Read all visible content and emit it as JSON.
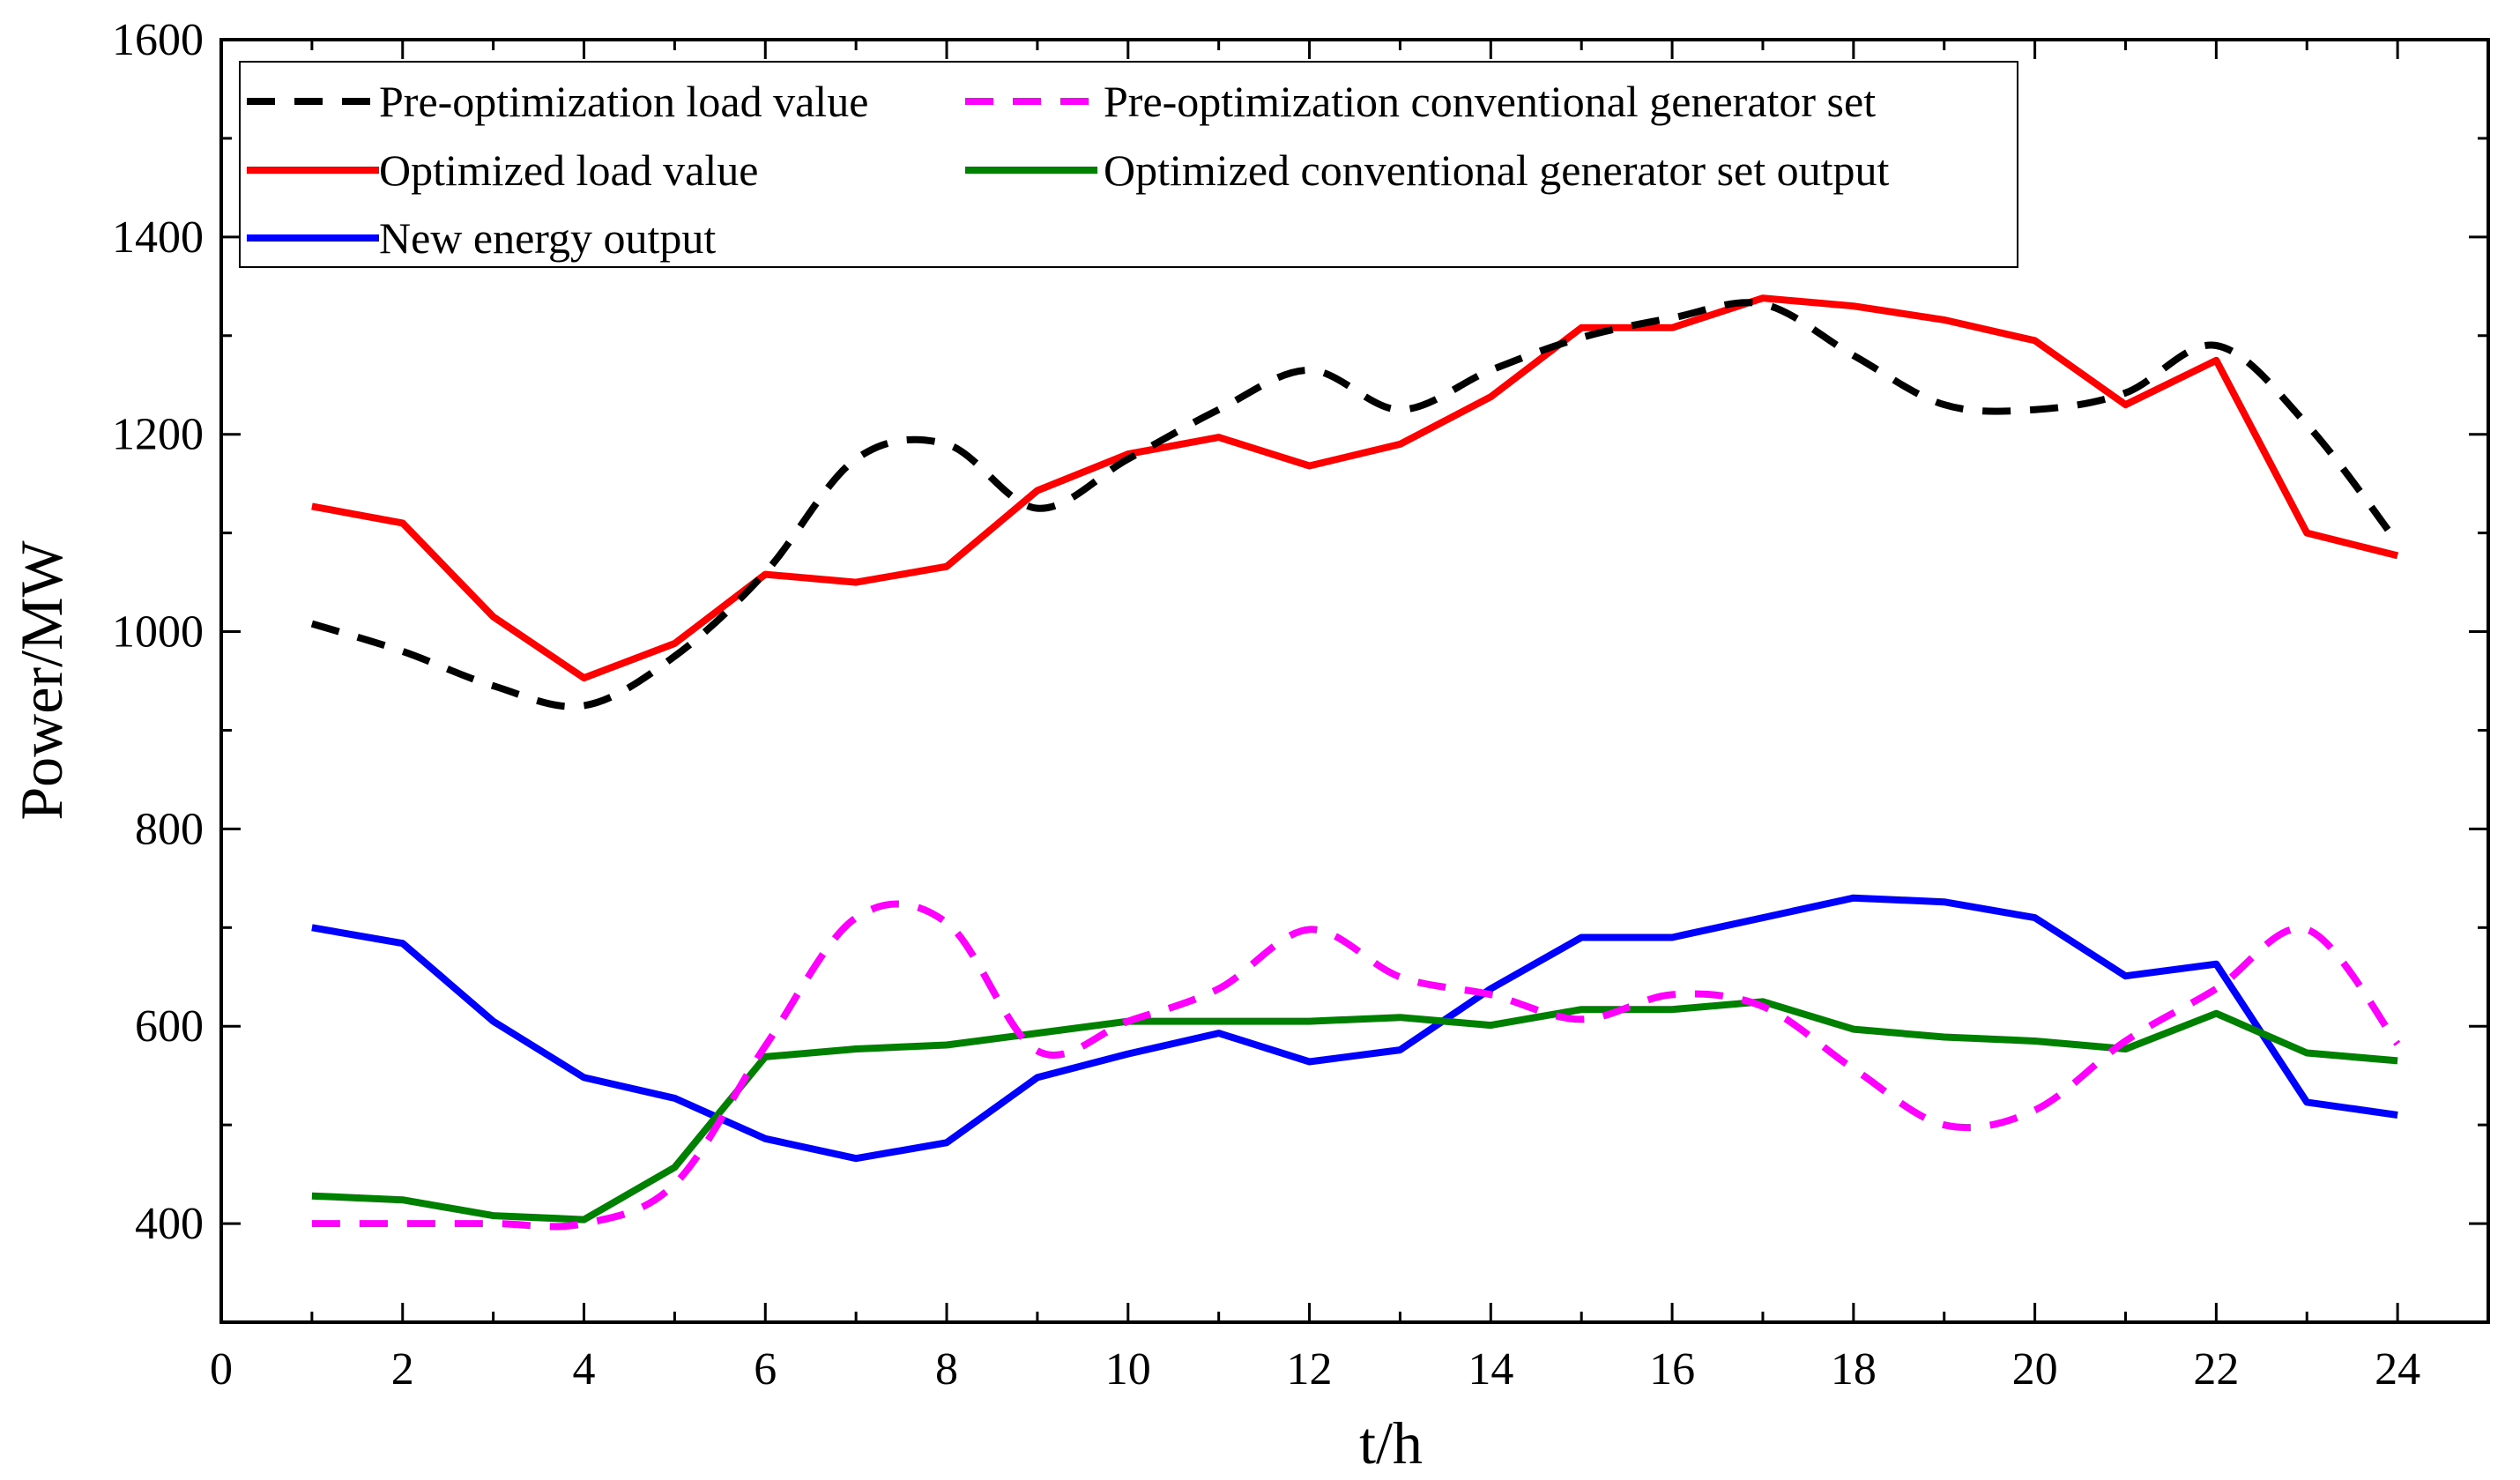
{
  "chart_data": {
    "type": "line",
    "title": "",
    "xlabel": "t/h",
    "ylabel": "Power/MW",
    "xlim": [
      0,
      25
    ],
    "ylim": [
      300,
      1600
    ],
    "xticks": [
      0,
      2,
      4,
      6,
      8,
      10,
      12,
      14,
      16,
      18,
      20,
      22,
      24
    ],
    "yticks": [
      400,
      600,
      800,
      1000,
      1200,
      1400,
      1600
    ],
    "grid": false,
    "legend_position": "top-left",
    "x": [
      1,
      2,
      3,
      4,
      5,
      6,
      7,
      8,
      9,
      10,
      11,
      12,
      13,
      14,
      15,
      16,
      17,
      18,
      19,
      20,
      21,
      22,
      23,
      24
    ],
    "series": [
      {
        "name": "Pre-optimization load value",
        "color": "#000000",
        "dash": "dash",
        "smooth": true,
        "values": [
          1008,
          980,
          945,
          925,
          975,
          1060,
          1175,
          1190,
          1125,
          1175,
          1225,
          1265,
          1225,
          1265,
          1298,
          1318,
          1332,
          1280,
          1230,
          1225,
          1242,
          1290,
          1210,
          1090
        ]
      },
      {
        "name": "Pre-optimization conventional generator set",
        "color": "#ff00ff",
        "dash": "dash",
        "smooth": true,
        "values": [
          400,
          400,
          400,
          400,
          440,
          580,
          710,
          705,
          575,
          605,
          638,
          698,
          650,
          632,
          607,
          632,
          620,
          557,
          500,
          515,
          585,
          638,
          698,
          582
        ]
      },
      {
        "name": "Optimized load value",
        "color": "#ff0000",
        "dash": "solid",
        "smooth": false,
        "values": [
          1127,
          1110,
          1015,
          953,
          988,
          1058,
          1050,
          1066,
          1143,
          1180,
          1197,
          1168,
          1190,
          1238,
          1308,
          1308,
          1338,
          1330,
          1316,
          1295,
          1230,
          1275,
          1100,
          1077
        ]
      },
      {
        "name": "Optimized conventional generator set output",
        "color": "#008000",
        "dash": "solid",
        "smooth": false,
        "values": [
          428,
          424,
          408,
          404,
          457,
          569,
          577,
          581,
          593,
          605,
          605,
          605,
          609,
          601,
          617,
          617,
          625,
          597,
          589,
          585,
          577,
          613,
          573,
          565
        ]
      },
      {
        "name": "New energy output",
        "color": "#0000ff",
        "dash": "solid",
        "smooth": false,
        "values": [
          700,
          684,
          605,
          548,
          527,
          486,
          466,
          482,
          548,
          572,
          593,
          564,
          576,
          638,
          690,
          690,
          710,
          730,
          726,
          710,
          651,
          663,
          523,
          510
        ]
      }
    ]
  }
}
